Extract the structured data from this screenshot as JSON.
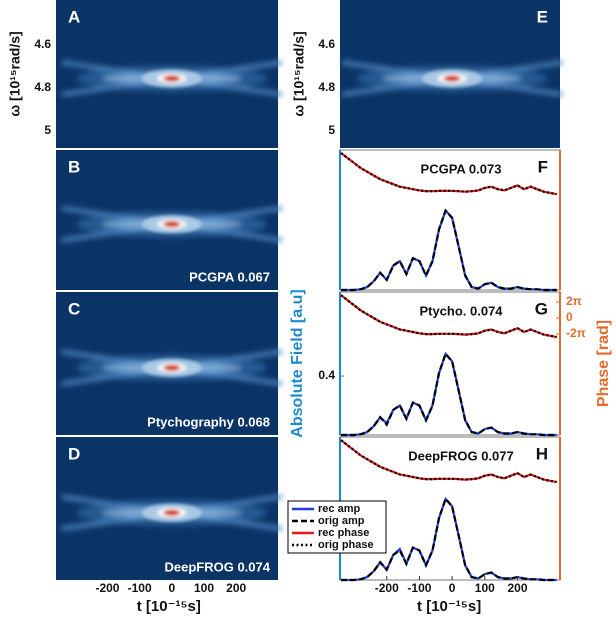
{
  "chart_data": [
    {
      "type": "heatmap",
      "panel": "A",
      "ylabel": "ω [10¹⁵rad/s]",
      "xlim": [
        -360,
        330
      ],
      "ylim": [
        4.39,
        5.08
      ],
      "yticks": [
        4.6,
        4.8,
        5
      ]
    },
    {
      "type": "heatmap",
      "panel": "B",
      "annotation": "PCGPA 0.067",
      "xlim": [
        -360,
        330
      ]
    },
    {
      "type": "heatmap",
      "panel": "C",
      "annotation": "Ptychography 0.068",
      "xlim": [
        -360,
        330
      ]
    },
    {
      "type": "heatmap",
      "panel": "D",
      "annotation": "DeepFROG 0.074",
      "xlim": [
        -360,
        330
      ],
      "xticks": [
        -200,
        -100,
        0,
        100,
        200
      ],
      "xlabel": "t [10⁻¹⁵s]"
    },
    {
      "type": "heatmap",
      "panel": "E",
      "ylabel": "ω [10¹⁵rad/s]",
      "xlim": [
        -343,
        330
      ],
      "ylim": [
        4.39,
        5.08
      ],
      "yticks": [
        4.6,
        4.8,
        5
      ]
    },
    {
      "type": "line",
      "panel": "F",
      "annotation": "PCGPA 0.073",
      "xlim": [
        -343,
        330
      ],
      "ylim": [
        0,
        0.97
      ],
      "y2lim": [
        -45.9,
        10.2
      ],
      "ycolor": "#1d8ad0",
      "y2color": "#e36c2d",
      "x": [
        -340,
        -320,
        -300,
        -280,
        -260,
        -240,
        -220,
        -200,
        -180,
        -160,
        -140,
        -120,
        -100,
        -80,
        -60,
        -40,
        -20,
        0,
        20,
        40,
        60,
        80,
        100,
        120,
        140,
        160,
        180,
        200,
        220,
        240,
        260,
        280,
        300,
        320
      ],
      "series": [
        {
          "color": "#1f3fd6",
          "dash": "solid",
          "values": [
            0,
            0,
            0,
            0.005,
            0.02,
            0.06,
            0.12,
            0.07,
            0.17,
            0.2,
            0.11,
            0.22,
            0.2,
            0.1,
            0.2,
            0.42,
            0.55,
            0.5,
            0.3,
            0.1,
            0.02,
            0.01,
            0.04,
            0.05,
            0.02,
            0.01,
            0.01,
            0.02,
            0.01,
            0.005,
            0.005,
            0,
            0,
            0
          ]
        },
        {
          "color": "#000000",
          "dash": "dashed",
          "values": [
            0,
            0,
            0,
            0.005,
            0.02,
            0.06,
            0.12,
            0.07,
            0.17,
            0.2,
            0.11,
            0.22,
            0.2,
            0.1,
            0.2,
            0.42,
            0.55,
            0.5,
            0.3,
            0.1,
            0.02,
            0.01,
            0.04,
            0.05,
            0.02,
            0.01,
            0.01,
            0.02,
            0.01,
            0.005,
            0.005,
            0,
            0,
            0
          ]
        },
        {
          "color": "#e31a1c",
          "dash": "solid",
          "axis": "y2",
          "values": [
            9,
            7,
            5,
            3,
            1.5,
            0,
            -1.5,
            -2.5,
            -3.5,
            -4.5,
            -5,
            -5.5,
            -6,
            -6.3,
            -6.3,
            -6.2,
            -6.2,
            -6.2,
            -6.3,
            -6.5,
            -6.3,
            -6,
            -5,
            -4.5,
            -5.5,
            -6,
            -5,
            -4,
            -5.5,
            -4.5,
            -5.5,
            -6.5,
            -7,
            -7.5
          ]
        },
        {
          "color": "#000000",
          "dash": "dotted",
          "axis": "y2",
          "values": [
            9,
            7,
            5,
            3,
            1.5,
            0,
            -1.5,
            -2.5,
            -3.5,
            -4.5,
            -5,
            -5.5,
            -6,
            -6.3,
            -6.3,
            -6.2,
            -6.2,
            -6.2,
            -6.3,
            -6.5,
            -6.3,
            -6,
            -5,
            -4.5,
            -5.5,
            -6,
            -5,
            -4,
            -5.5,
            -4.5,
            -5.5,
            -6.5,
            -7,
            -7.5
          ]
        }
      ]
    },
    {
      "type": "line",
      "panel": "G",
      "annotation": "Ptycho. 0.074",
      "ylabel": "Absolute Field [a.u]",
      "y2label": "Phase [rad]",
      "xlim": [
        -343,
        330
      ],
      "ylim": [
        0,
        0.97
      ],
      "yticks": [
        0.4
      ],
      "y2lim": [
        -45.9,
        10.2
      ],
      "y2ticks": [
        {
          "value": 6.283,
          "label": "2π"
        },
        0,
        {
          "value": -6.283,
          "label": "-2π"
        }
      ],
      "ycolor": "#1d8ad0",
      "y2color": "#e36c2d",
      "x": [
        -340,
        -320,
        -300,
        -280,
        -260,
        -240,
        -220,
        -200,
        -180,
        -160,
        -140,
        -120,
        -100,
        -80,
        -60,
        -40,
        -20,
        0,
        20,
        40,
        60,
        80,
        100,
        120,
        140,
        160,
        180,
        200,
        220,
        240,
        260,
        280,
        300,
        320
      ],
      "series": [
        {
          "color": "#1f3fd6",
          "dash": "solid",
          "values": [
            0,
            0,
            0,
            0.005,
            0.02,
            0.06,
            0.12,
            0.08,
            0.17,
            0.2,
            0.11,
            0.22,
            0.2,
            0.1,
            0.2,
            0.42,
            0.55,
            0.5,
            0.3,
            0.1,
            0.02,
            0.01,
            0.04,
            0.05,
            0.02,
            0.01,
            0.01,
            0.02,
            0.01,
            0.005,
            0.005,
            0,
            0,
            0
          ]
        },
        {
          "color": "#000000",
          "dash": "dashed",
          "values": [
            0,
            0,
            0,
            0.005,
            0.02,
            0.06,
            0.12,
            0.07,
            0.17,
            0.2,
            0.11,
            0.22,
            0.2,
            0.1,
            0.2,
            0.42,
            0.55,
            0.5,
            0.3,
            0.1,
            0.02,
            0.01,
            0.04,
            0.05,
            0.02,
            0.01,
            0.01,
            0.02,
            0.01,
            0.005,
            0.005,
            0,
            0,
            0
          ]
        },
        {
          "color": "#e31a1c",
          "dash": "solid",
          "axis": "y2",
          "values": [
            9,
            7,
            5,
            3,
            1.5,
            0,
            -1.5,
            -2.5,
            -3.5,
            -4.5,
            -5,
            -5.5,
            -6,
            -6.3,
            -6.3,
            -6.2,
            -6.2,
            -6.2,
            -6.3,
            -6.5,
            -6.3,
            -6,
            -5,
            -4.5,
            -5.5,
            -6,
            -5,
            -4,
            -5.5,
            -4.5,
            -5.5,
            -6.5,
            -7,
            -7.5
          ]
        },
        {
          "color": "#000000",
          "dash": "dotted",
          "axis": "y2",
          "values": [
            9,
            7,
            5,
            3,
            1.5,
            0,
            -1.5,
            -2.5,
            -3.5,
            -4.5,
            -5,
            -5.5,
            -6,
            -6.3,
            -6.3,
            -6.2,
            -6.2,
            -6.2,
            -6.3,
            -6.5,
            -6.3,
            -6,
            -5,
            -4.5,
            -5.5,
            -6,
            -5,
            -4,
            -5.5,
            -4.5,
            -5.5,
            -6.5,
            -7,
            -7.5
          ]
        }
      ]
    },
    {
      "type": "line",
      "panel": "H",
      "annotation": "DeepFROG 0.077",
      "xlabel": "t [10⁻¹⁵s]",
      "xlim": [
        -343,
        330
      ],
      "xticks": [
        -200,
        -100,
        0,
        100,
        200
      ],
      "ylim": [
        0,
        0.97
      ],
      "y2lim": [
        -45.9,
        10.2
      ],
      "ycolor": "#1d8ad0",
      "y2color": "#e36c2d",
      "legend": "lower left",
      "x": [
        -340,
        -320,
        -300,
        -280,
        -260,
        -240,
        -220,
        -200,
        -180,
        -160,
        -140,
        -120,
        -100,
        -80,
        -60,
        -40,
        -20,
        0,
        20,
        40,
        60,
        80,
        100,
        120,
        140,
        160,
        180,
        200,
        220,
        240,
        260,
        280,
        300,
        320
      ],
      "series": [
        {
          "name": "rec amp",
          "color": "#1f3fd6",
          "dash": "solid",
          "values": [
            0,
            0,
            0,
            0.005,
            0.02,
            0.06,
            0.12,
            0.07,
            0.17,
            0.21,
            0.11,
            0.22,
            0.2,
            0.1,
            0.2,
            0.42,
            0.55,
            0.5,
            0.3,
            0.1,
            0.02,
            0.01,
            0.04,
            0.05,
            0.02,
            0.01,
            0.01,
            0.02,
            0.01,
            0.005,
            0.005,
            0,
            0,
            0
          ]
        },
        {
          "name": "orig amp",
          "color": "#000000",
          "dash": "dashed",
          "values": [
            0,
            0,
            0,
            0.005,
            0.02,
            0.06,
            0.12,
            0.07,
            0.17,
            0.2,
            0.11,
            0.22,
            0.2,
            0.1,
            0.2,
            0.42,
            0.55,
            0.5,
            0.3,
            0.1,
            0.02,
            0.01,
            0.04,
            0.05,
            0.02,
            0.01,
            0.01,
            0.02,
            0.01,
            0.005,
            0.005,
            0,
            0,
            0
          ]
        },
        {
          "name": "rec phase",
          "color": "#e31a1c",
          "dash": "solid",
          "axis": "y2",
          "values": [
            9,
            7,
            5,
            3,
            1.5,
            0,
            -1.5,
            -2.5,
            -3.5,
            -4.5,
            -5,
            -5.5,
            -6,
            -6.3,
            -6.3,
            -6.2,
            -6.2,
            -6.2,
            -6.3,
            -6.5,
            -6.3,
            -6,
            -5,
            -4.5,
            -5.5,
            -6,
            -5,
            -4,
            -5.5,
            -4.5,
            -5.5,
            -6.5,
            -7,
            -7.5
          ]
        },
        {
          "name": "orig phase",
          "color": "#000000",
          "dash": "dotted",
          "axis": "y2",
          "values": [
            9,
            7,
            5,
            3,
            1.5,
            0,
            -1.5,
            -2.5,
            -3.5,
            -4.5,
            -5,
            -5.5,
            -6,
            -6.3,
            -6.3,
            -6.2,
            -6.2,
            -6.2,
            -6.3,
            -6.5,
            -6.3,
            -6,
            -5,
            -4.5,
            -5.5,
            -6,
            -5,
            -4,
            -5.5,
            -4.5,
            -5.5,
            -6.5,
            -7,
            -7.5
          ]
        }
      ]
    }
  ]
}
